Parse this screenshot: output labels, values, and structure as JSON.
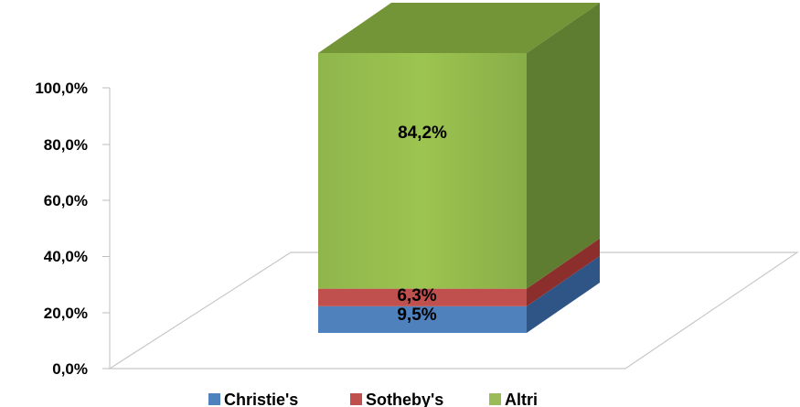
{
  "chart_data": {
    "type": "bar",
    "stacked": true,
    "three_d": true,
    "title": "",
    "xlabel": "",
    "ylabel": "",
    "ylim": [
      0,
      100
    ],
    "y_ticks": [
      "0,0%",
      "20,0%",
      "40,0%",
      "60,0%",
      "80,0%",
      "100,0%"
    ],
    "legend_position": "bottom",
    "series": [
      {
        "name": "Christie's",
        "value": 9.5,
        "label": "9,5%",
        "color": "#4f81bd"
      },
      {
        "name": "Sotheby's",
        "value": 6.3,
        "label": "6,3%",
        "color": "#c0504d"
      },
      {
        "name": "Altri",
        "value": 84.2,
        "label": "84,2%",
        "color": "#9bbb59"
      }
    ]
  }
}
